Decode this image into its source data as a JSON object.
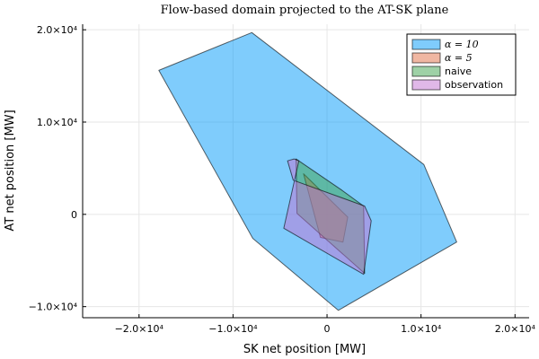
{
  "chart_data": {
    "type": "area",
    "title": "Flow-based domain projected to the AT-SK plane",
    "xlabel": "SK net position [MW]",
    "ylabel": "AT net position [MW]",
    "xlim": [
      -26000,
      21500
    ],
    "ylim": [
      -11200,
      20600
    ],
    "grid": true,
    "legend_position": "top-right",
    "x_ticks": [
      {
        "value": -20000,
        "label": "−2.0×10⁴"
      },
      {
        "value": -10000,
        "label": "−1.0×10⁴"
      },
      {
        "value": 0,
        "label": "0"
      },
      {
        "value": 10000,
        "label": "1.0×10⁴"
      },
      {
        "value": 20000,
        "label": "2.0×10⁴"
      }
    ],
    "y_ticks": [
      {
        "value": -10000,
        "label": "−1.0×10⁴"
      },
      {
        "value": 0,
        "label": "0"
      },
      {
        "value": 10000,
        "label": "1.0×10⁴"
      },
      {
        "value": 20000,
        "label": "2.0×10⁴"
      }
    ],
    "series": [
      {
        "name": "α = 10",
        "math": true,
        "color": "#009AFA",
        "opacity": 0.5,
        "x": [
          -8000,
          10300,
          13800,
          1200,
          -7900,
          -17900
        ],
        "y": [
          19700,
          5400,
          -3000,
          -10400,
          -2600,
          15600
        ]
      },
      {
        "name": "α = 5",
        "math": true,
        "color": "#E26F46",
        "opacity": 0.5,
        "x": [
          -2500,
          2200,
          1700,
          -700
        ],
        "y": [
          4400,
          -300,
          -3000,
          -2500
        ]
      },
      {
        "name": "naive",
        "color": "#3EA44E",
        "opacity": 0.5,
        "x": [
          -3300,
          1600,
          3900,
          4000,
          -3200
        ],
        "y": [
          6000,
          2600,
          900,
          -6400,
          100
        ]
      },
      {
        "name": "observation",
        "color": "#C271D2",
        "opacity": 0.5,
        "x": [
          -3500,
          -4200,
          -3600,
          4000,
          4700,
          3900,
          -4600,
          -3000
        ],
        "y": [
          6000,
          5800,
          3700,
          900,
          -700,
          -6500,
          -1500,
          5800
        ]
      }
    ]
  }
}
